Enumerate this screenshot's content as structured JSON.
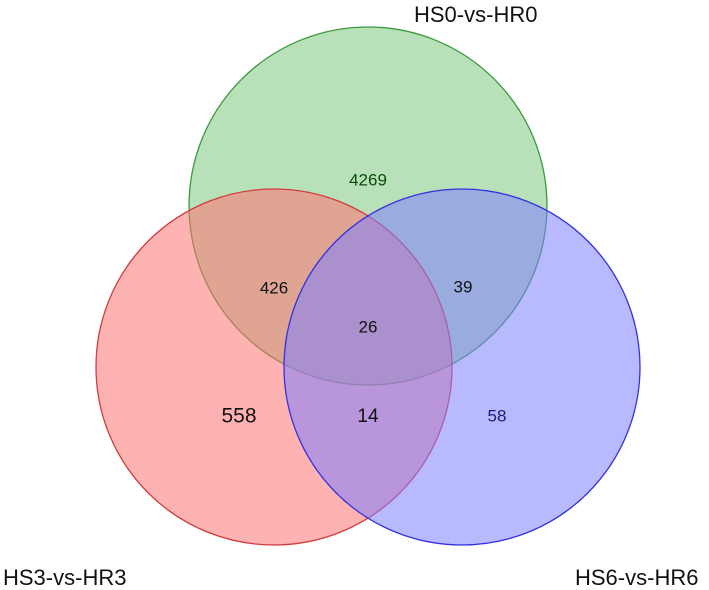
{
  "sets": [
    {
      "id": "top",
      "name": "HS0-vs-HR0",
      "fill": "#7fc97f",
      "stroke": "#3a9a3a"
    },
    {
      "id": "left",
      "name": "HS3-vs-HR3",
      "fill": "#ff7373",
      "stroke": "#d23c3c"
    },
    {
      "id": "right",
      "name": "HS6-vs-HR6",
      "fill": "#8080ff",
      "stroke": "#3333dd"
    }
  ],
  "regions": {
    "top_only": "4269",
    "top_left": "426",
    "top_right": "39",
    "all_three": "26",
    "left_only": "558",
    "left_right": "14",
    "right_only": "58"
  },
  "colors": {
    "top_only_text": "#0a4a0a",
    "right_only_text": "#1a1a80",
    "default_text": "#111111"
  }
}
